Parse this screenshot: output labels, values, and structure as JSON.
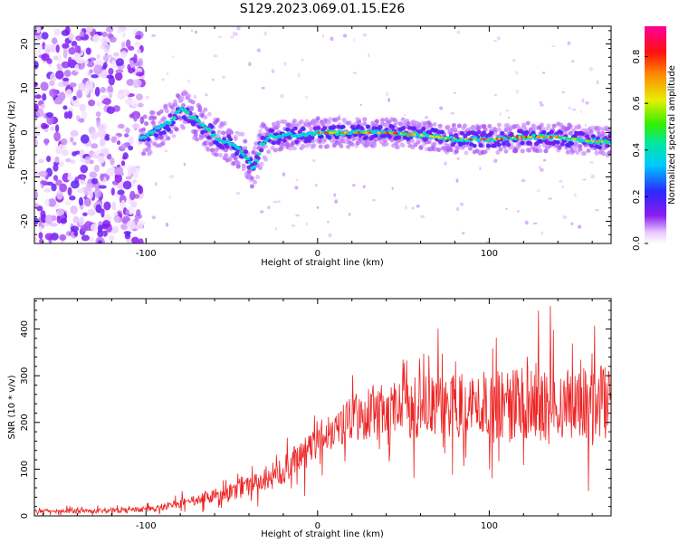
{
  "figure_title": "S129.2023.069.01.15.E26",
  "chart_data": [
    {
      "type": "heatmap",
      "title": "S129.2023.069.01.15.E26",
      "xlabel": "Height of straight line (km)",
      "ylabel": "Frequency (Hz)",
      "xlim": [
        -165,
        171
      ],
      "ylim": [
        -25,
        24
      ],
      "x_ticks": [
        -100,
        0,
        100
      ],
      "y_ticks": [
        -20,
        -10,
        0,
        10,
        20
      ],
      "grid": false,
      "colorbar": {
        "label": "Normalized spectral amplitude",
        "range": [
          0.0,
          0.93
        ],
        "ticks": [
          0.0,
          0.2,
          0.4,
          0.6,
          0.8
        ],
        "colormap": "rainbow (white-purple-blue-cyan-green-yellow-red-magenta)"
      },
      "ridge": {
        "x": [
          -103,
          -95,
          -85,
          -80,
          -75,
          -65,
          -58,
          -50,
          -45,
          -40,
          -37,
          -33,
          -28,
          -20,
          -10,
          0,
          20,
          40,
          60,
          80,
          100,
          120,
          140,
          160,
          171
        ],
        "y": [
          -1.5,
          0.5,
          2.5,
          5.5,
          4.0,
          1.0,
          -1.5,
          -2.5,
          -4.0,
          -6.5,
          -8.5,
          -3.0,
          -1.0,
          -0.5,
          -0.5,
          0.0,
          0.0,
          0.0,
          -0.5,
          -1.5,
          -1.5,
          -1.0,
          -1.0,
          -2.0,
          -2.0
        ]
      }
    },
    {
      "type": "line",
      "xlabel": "Height of straight line (km)",
      "ylabel": "SNR (10 * v/v)",
      "xlim": [
        -165,
        171
      ],
      "ylim": [
        0,
        465
      ],
      "x_ticks": [
        -100,
        0,
        100
      ],
      "y_ticks": [
        0,
        100,
        200,
        300,
        400
      ],
      "grid": false,
      "series_color": "#ee2222",
      "trend": {
        "x": [
          -165,
          -140,
          -110,
          -95,
          -85,
          -75,
          -65,
          -55,
          -45,
          -35,
          -25,
          -15,
          -5,
          5,
          15,
          30,
          50,
          70,
          90,
          110,
          130,
          150,
          171
        ],
        "y": [
          10,
          10,
          12,
          15,
          25,
          28,
          38,
          48,
          55,
          70,
          85,
          110,
          150,
          180,
          200,
          220,
          230,
          235,
          238,
          240,
          240,
          238,
          235
        ]
      },
      "spread": {
        "x": [
          -165,
          -100,
          -60,
          -30,
          0,
          30,
          80,
          130,
          171
        ],
        "y": [
          4,
          6,
          15,
          25,
          40,
          60,
          70,
          80,
          85
        ]
      }
    }
  ]
}
